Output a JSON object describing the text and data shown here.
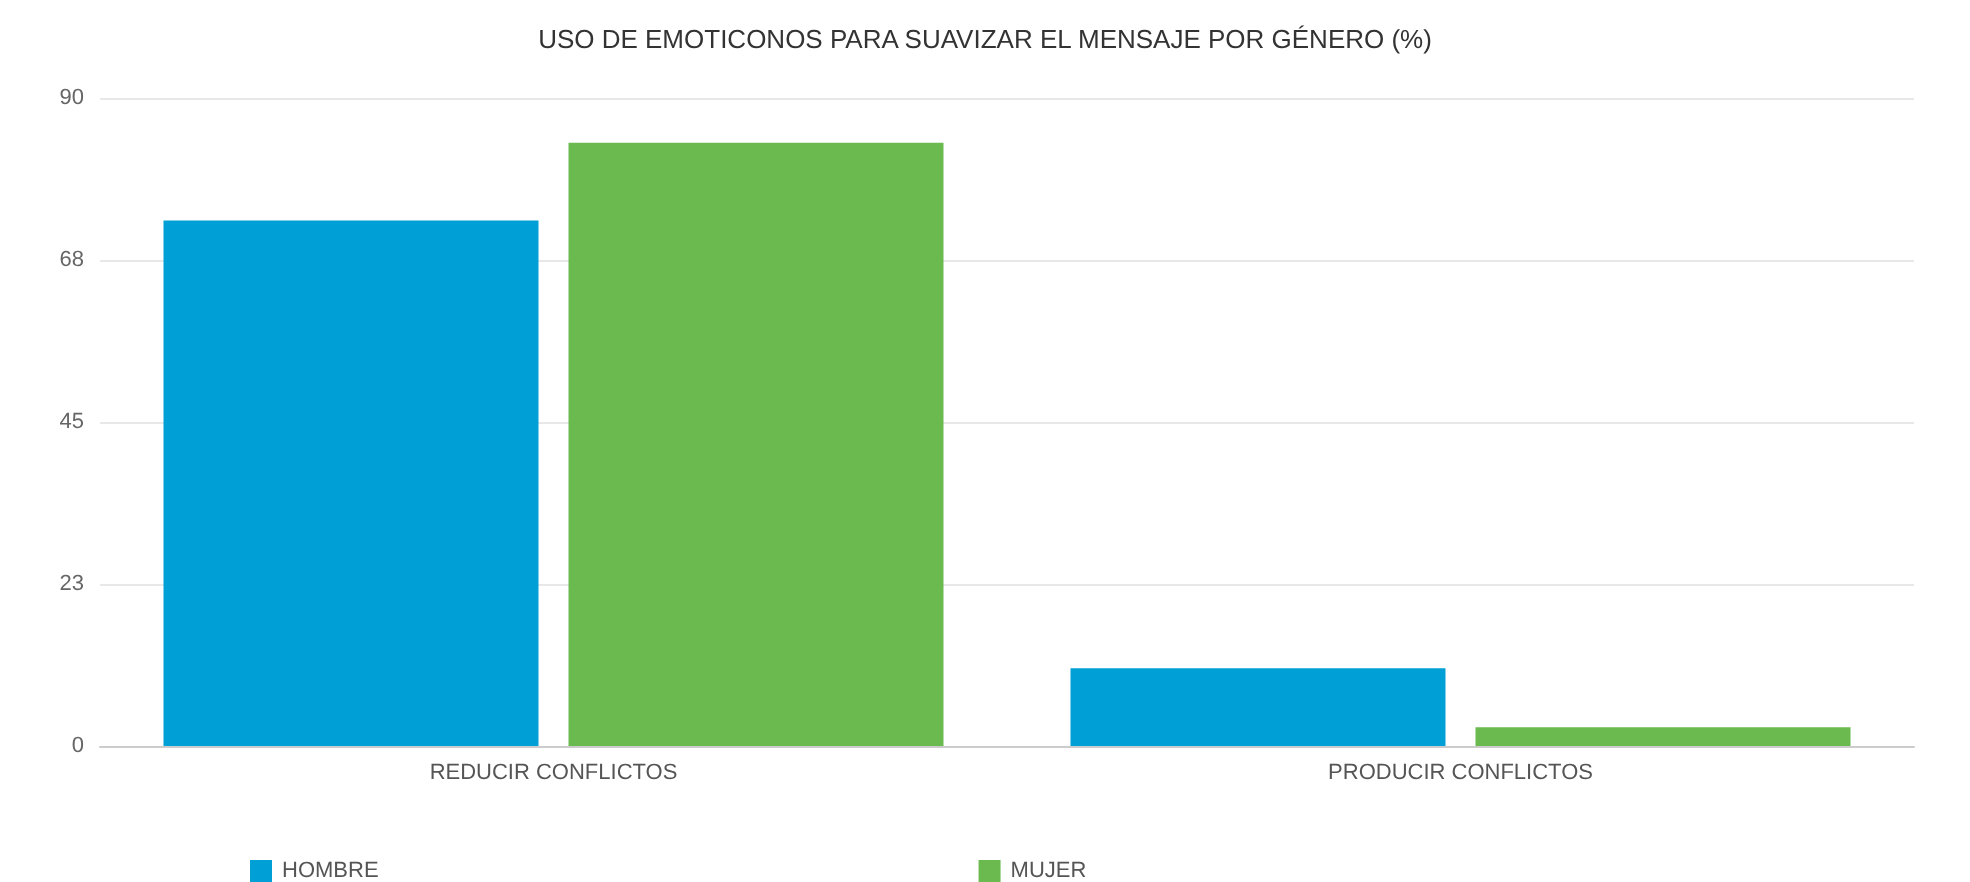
{
  "chart_data": {
    "type": "bar",
    "title": "USO DE EMOTICONOS PARA SUAVIZAR EL MENSAJE POR GÉNERO (%)",
    "categories": [
      "REDUCIR CONFLICTOS",
      "PRODUCIR CONFLICTOS"
    ],
    "series": [
      {
        "name": "HOMBRE",
        "color": "#00a0d6",
        "values": [
          73,
          10.8
        ]
      },
      {
        "name": "MUJER",
        "color": "#6aba4f",
        "values": [
          83.8,
          2.6
        ]
      }
    ],
    "ylim": [
      0,
      90
    ],
    "yticks": [
      0,
      {
        "value": 22.5,
        "label": "23"
      },
      45,
      {
        "value": 67.5,
        "label": "68"
      },
      90
    ],
    "grid": "y",
    "legend": "bottom left"
  }
}
